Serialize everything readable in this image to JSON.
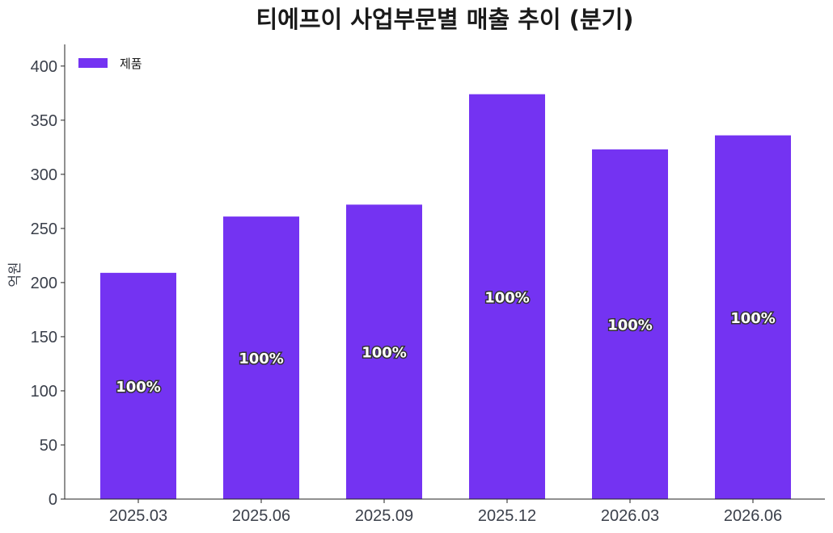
{
  "colors": {
    "bar": "#7433F2",
    "axis": "#222222",
    "text": "#3a3f4a"
  },
  "chart_data": {
    "type": "bar",
    "title": "티에프이 사업부문별 매출 추이 (분기)",
    "xlabel": "",
    "ylabel": "억원",
    "categories": [
      "2025.03",
      "2025.06",
      "2025.09",
      "2025.12",
      "2026.03",
      "2026.06"
    ],
    "series": [
      {
        "name": "제품",
        "values": [
          209,
          261,
          272,
          374,
          323,
          336
        ],
        "data_labels": [
          "100%",
          "100%",
          "100%",
          "100%",
          "100%",
          "100%"
        ]
      }
    ],
    "ylim": [
      0,
      420
    ],
    "yticks": [
      0,
      50,
      100,
      150,
      200,
      250,
      300,
      350,
      400
    ],
    "grid": false,
    "legend": "top-left"
  }
}
